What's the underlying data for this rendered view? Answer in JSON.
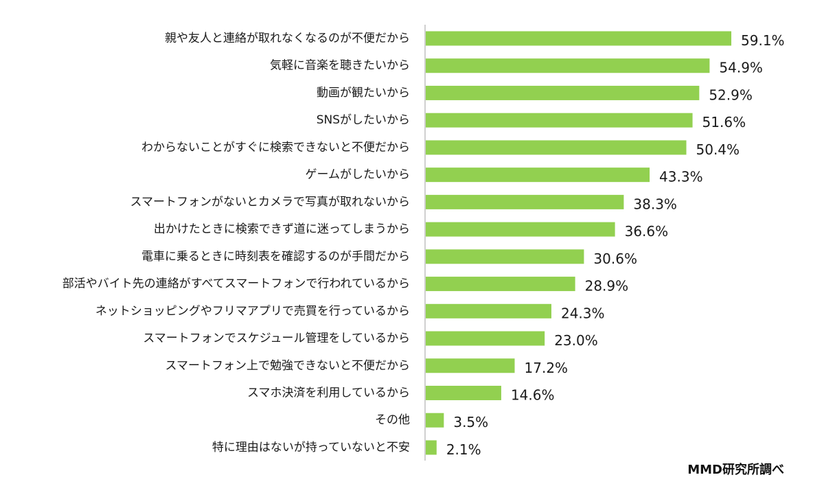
{
  "chart_data": {
    "type": "bar",
    "orientation": "horizontal",
    "categories": [
      "親や友人と連絡が取れなくなるのが不便だから",
      "気軽に音楽を聴きたいから",
      "動画が観たいから",
      "SNSがしたいから",
      "わからないことがすぐに検索できないと不便だから",
      "ゲームがしたいから",
      "スマートフォンがないとカメラで写真が取れないから",
      "出かけたときに検索できず道に迷ってしまうから",
      "電車に乗るときに時刻表を確認するのが手間だから",
      "部活やバイト先の連絡がすべてスマートフォンで行われているから",
      "ネットショッピングやフリマアプリで売買を行っているから",
      "スマートフォンでスケジュール管理をしているから",
      "スマートフォン上で勉強できないと不便だから",
      "スマホ決済を利用しているから",
      "その他",
      "特に理由はないが持っていないと不安"
    ],
    "values": [
      59.1,
      54.9,
      52.9,
      51.6,
      50.4,
      43.3,
      38.3,
      36.6,
      30.6,
      28.9,
      24.3,
      23.0,
      17.2,
      14.6,
      3.5,
      2.1
    ],
    "value_labels": [
      "59.1%",
      "54.9%",
      "52.9%",
      "51.6%",
      "50.4%",
      "43.3%",
      "38.3%",
      "36.6%",
      "30.6%",
      "28.9%",
      "24.3%",
      "23.0%",
      "17.2%",
      "14.6%",
      "3.5%",
      "2.1%"
    ],
    "xlim": [
      0,
      100
    ],
    "grid": false,
    "legend": "none",
    "bar_color": "#92d050",
    "axis_color": "#bfbfbf"
  },
  "source_note": "MMD研究所調べ"
}
